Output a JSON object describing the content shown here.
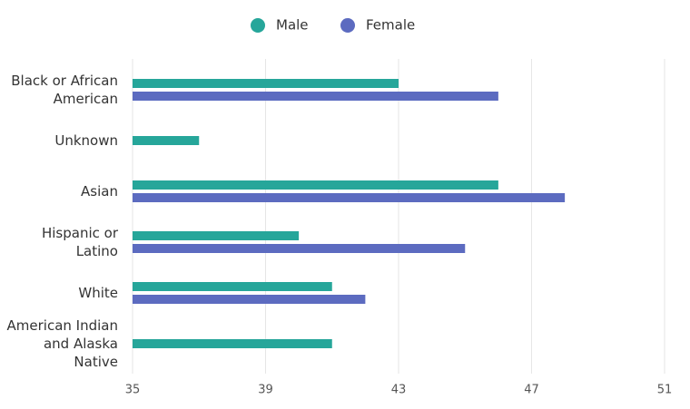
{
  "chart_data": {
    "type": "bar",
    "orientation": "horizontal",
    "categories": [
      "Black or African American",
      "Unknown",
      "Asian",
      "Hispanic or Latino",
      "White",
      "American Indian and Alaska Native"
    ],
    "series": [
      {
        "name": "Male",
        "color": "#26a69a",
        "values": [
          43,
          37,
          46,
          40,
          41,
          41
        ]
      },
      {
        "name": "Female",
        "color": "#5c6bc0",
        "values": [
          46,
          null,
          48,
          45,
          42,
          null
        ]
      }
    ],
    "xlim": [
      35,
      51
    ],
    "xticks": [
      35,
      39,
      43,
      47,
      51
    ],
    "grid": true,
    "legend": "top"
  }
}
